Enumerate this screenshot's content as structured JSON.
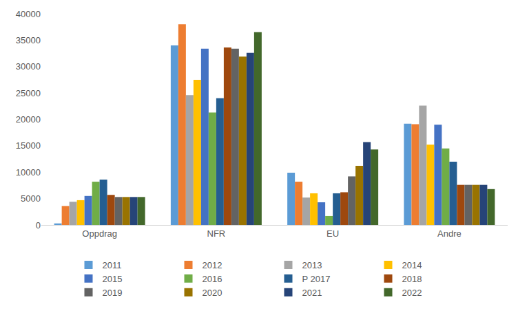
{
  "chart_data": {
    "type": "bar",
    "categories": [
      "Oppdrag",
      "NFR",
      "EU",
      "Andre"
    ],
    "series": [
      {
        "name": "2011",
        "color": "#5B9BD5",
        "values": [
          300,
          34000,
          9900,
          19200
        ]
      },
      {
        "name": "2012",
        "color": "#ED7D31",
        "values": [
          3600,
          38000,
          8200,
          19100
        ]
      },
      {
        "name": "2013",
        "color": "#A5A5A5",
        "values": [
          4400,
          24600,
          5200,
          22600
        ]
      },
      {
        "name": "2014",
        "color": "#FFC000",
        "values": [
          4700,
          27500,
          6000,
          15200
        ]
      },
      {
        "name": "2015",
        "color": "#4472C4",
        "values": [
          5500,
          33400,
          4300,
          19000
        ]
      },
      {
        "name": "2016",
        "color": "#70AD47",
        "values": [
          8200,
          21300,
          1700,
          14500
        ]
      },
      {
        "name": "P 2017",
        "color": "#255E91",
        "values": [
          8600,
          24000,
          6000,
          12000
        ]
      },
      {
        "name": "2018",
        "color": "#9E480E",
        "values": [
          5700,
          33600,
          6200,
          7600
        ]
      },
      {
        "name": "2019",
        "color": "#636363",
        "values": [
          5300,
          33400,
          9200,
          7600
        ]
      },
      {
        "name": "2020",
        "color": "#997300",
        "values": [
          5300,
          31900,
          11200,
          7600
        ]
      },
      {
        "name": "2021",
        "color": "#264478",
        "values": [
          5300,
          32600,
          15700,
          7600
        ]
      },
      {
        "name": "2022",
        "color": "#43682B",
        "values": [
          5300,
          36500,
          14300,
          6800
        ]
      }
    ],
    "ylim": [
      0,
      40000
    ],
    "yticks": [
      0,
      5000,
      10000,
      15000,
      20000,
      25000,
      30000,
      35000,
      40000
    ],
    "grid": false,
    "legend": "bottom"
  }
}
